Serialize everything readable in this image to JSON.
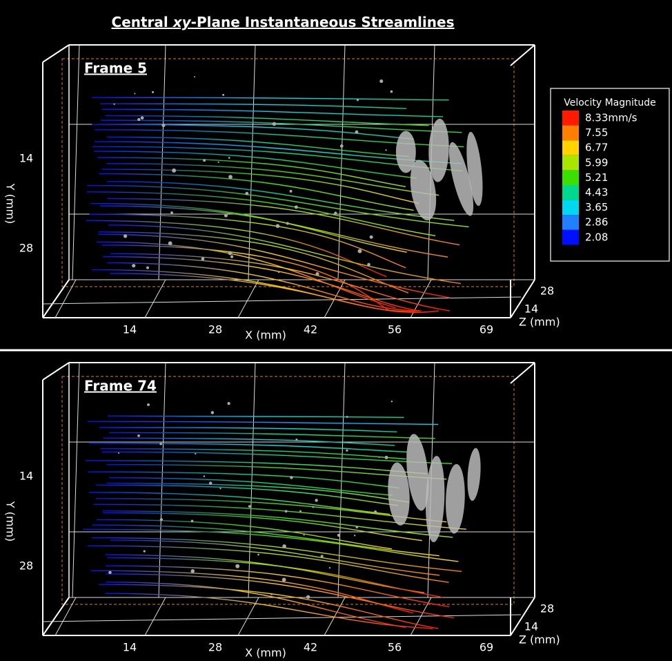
{
  "title": {
    "prefix": "Central ",
    "italic": "xy",
    "suffix": "-Plane Instantaneous Streamlines"
  },
  "panels": [
    {
      "frame": "Frame 5",
      "y_label": "Y (mm)",
      "y_ticks": [
        "14",
        "28"
      ],
      "x_label": "X (mm)",
      "x_ticks": [
        "14",
        "28",
        "42",
        "56",
        "69"
      ],
      "z_label": "Z (mm)",
      "z_ticks": [
        "28",
        "14"
      ]
    },
    {
      "frame": "Frame 74",
      "y_label": "Y (mm)",
      "y_ticks": [
        "14",
        "28"
      ],
      "x_label": "X (mm)",
      "x_ticks": [
        "14",
        "28",
        "42",
        "56",
        "69"
      ],
      "z_label": "Z (mm)",
      "z_ticks": [
        "28",
        "14"
      ]
    }
  ],
  "colorbar": {
    "title": "Velocity Magnitude",
    "labels": [
      "8.33mm/s",
      "7.55",
      "6.77",
      "5.99",
      "5.21",
      "4.43",
      "3.65",
      "2.86",
      "2.08"
    ],
    "colors": [
      "#ff1a00",
      "#ff8000",
      "#ffd200",
      "#a8e600",
      "#3ce000",
      "#00d890",
      "#00d8f0",
      "#2080ff",
      "#0010ff"
    ]
  }
}
